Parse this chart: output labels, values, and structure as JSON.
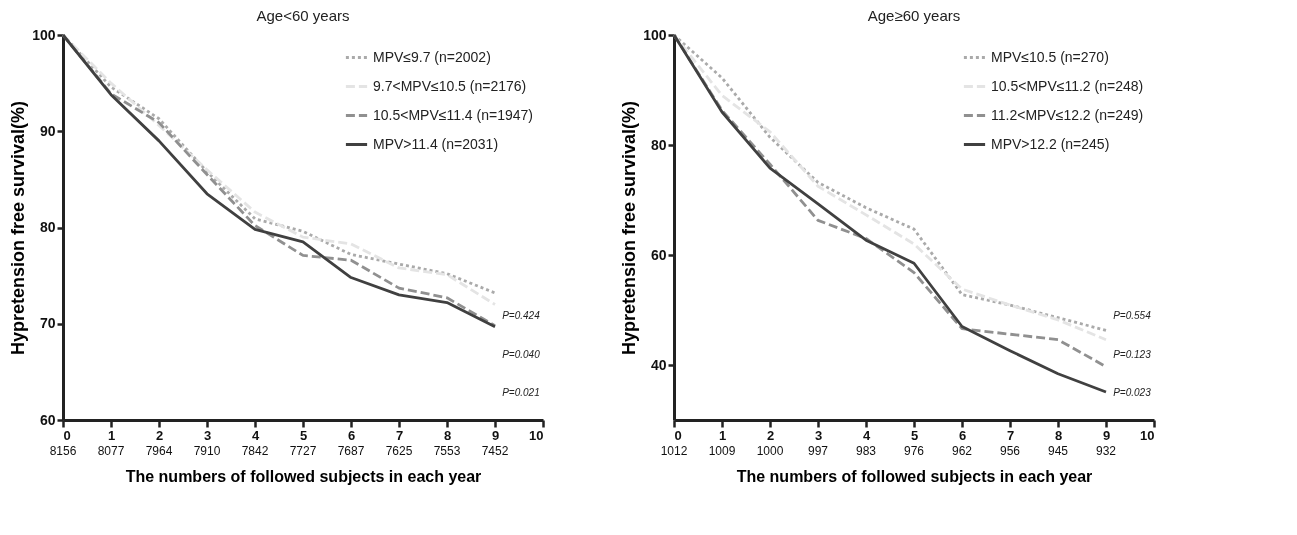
{
  "chart_data": [
    {
      "type": "line",
      "title": "Age<60 years",
      "xlabel": "The numbers of followed subjects in each year",
      "ylabel": "Hypretension free survival(%)",
      "x": [
        0,
        1,
        2,
        3,
        4,
        5,
        6,
        7,
        8,
        9
      ],
      "xlim": [
        0,
        10
      ],
      "ylim": [
        60,
        100
      ],
      "yticks": [
        60,
        70,
        80,
        90,
        100
      ],
      "xticks": [
        0,
        1,
        2,
        3,
        4,
        5,
        6,
        7,
        8,
        9,
        10
      ],
      "grid": false,
      "legend": "top right",
      "series": [
        {
          "name": "MPV≤9.7 (n=2002)",
          "color": "#aaaaaa",
          "line_style": "dotted",
          "values": [
            100,
            94.6,
            91.3,
            85.8,
            80.9,
            79.6,
            77.2,
            76.2,
            75.2,
            73.2
          ]
        },
        {
          "name": "9.7<MPV≤10.5 (n=2176)",
          "color": "#e4e4e4",
          "line_style": "dashed",
          "values": [
            100,
            95.0,
            90.6,
            86.0,
            81.6,
            79.0,
            78.3,
            75.8,
            75.1,
            72.0
          ]
        },
        {
          "name": "10.5<MPV≤11.4 (n=1947)",
          "color": "#909090",
          "line_style": "dashed",
          "values": [
            100,
            93.9,
            90.9,
            85.5,
            80.2,
            77.1,
            76.6,
            73.7,
            72.7,
            69.8
          ]
        },
        {
          "name": "MPV>11.4 (n=2031)",
          "color": "#404040",
          "line_style": "solid",
          "values": [
            100,
            93.8,
            89.0,
            83.5,
            79.8,
            78.5,
            74.8,
            73.0,
            72.2,
            69.7
          ]
        }
      ],
      "annotations": [
        "8156",
        "8077",
        "7964",
        "7910",
        "7842",
        "7727",
        "7687",
        "7625",
        "7553",
        "7452",
        "P=0.424",
        "P=0.040",
        "P=0.021"
      ]
    },
    {
      "type": "line",
      "title": "Age≥60 years",
      "xlabel": "The numbers of followed subjects in each year",
      "ylabel": "Hypretension free survival(%)",
      "x": [
        0,
        1,
        2,
        3,
        4,
        5,
        6,
        7,
        8,
        9
      ],
      "xlim": [
        0,
        10
      ],
      "ylim": [
        30,
        100
      ],
      "yticks": [
        40,
        60,
        80,
        100
      ],
      "xticks": [
        0,
        1,
        2,
        3,
        4,
        5,
        6,
        7,
        8,
        9,
        10
      ],
      "grid": false,
      "legend": "top right",
      "series": [
        {
          "name": "MPV≤10.5 (n=270)",
          "color": "#aaaaaa",
          "line_style": "dotted",
          "values": [
            100,
            92.2,
            81.4,
            73.2,
            68.6,
            64.7,
            52.8,
            50.9,
            48.6,
            46.3
          ]
        },
        {
          "name": "10.5<MPV≤11.2 (n=248)",
          "color": "#e4e4e4",
          "line_style": "dashed",
          "values": [
            100,
            89.0,
            82.4,
            72.5,
            67.3,
            62.0,
            53.8,
            50.9,
            48.2,
            44.6
          ]
        },
        {
          "name": "11.2<MPV≤12.2 (n=249)",
          "color": "#909090",
          "line_style": "dashed",
          "values": [
            100,
            86.3,
            76.5,
            66.3,
            63.0,
            56.8,
            46.6,
            45.6,
            44.6,
            39.7
          ]
        },
        {
          "name": "MPV>12.2 (n=245)",
          "color": "#404040",
          "line_style": "solid",
          "values": [
            100,
            86.0,
            75.8,
            69.3,
            62.7,
            58.5,
            47.0,
            42.6,
            38.4,
            35.1
          ]
        }
      ],
      "annotations": [
        "1012",
        "1009",
        "1000",
        "997",
        "983",
        "976",
        "962",
        "956",
        "945",
        "932",
        "P=0.554",
        "P=0.123",
        "P=0.023"
      ]
    }
  ]
}
